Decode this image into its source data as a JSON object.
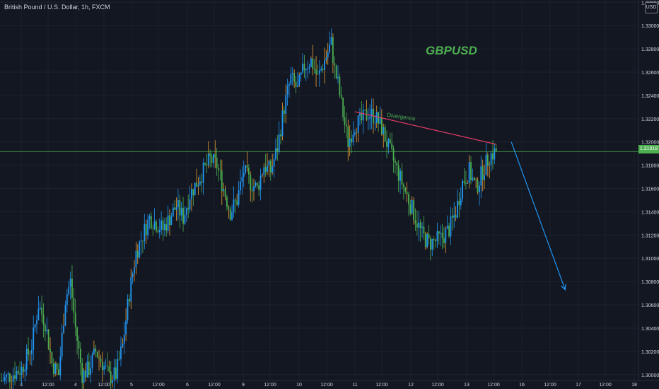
{
  "header": {
    "symbol_title": "British Pound / U.S. Dollar, 1h, FXCM",
    "currency": "USD"
  },
  "price_tag": "1.31918",
  "annotations": {
    "symbol": "GBPUSD",
    "divergence": "Divergence"
  },
  "colors": {
    "background": "#131722",
    "up_candle": "#2196f3",
    "down_candle": "#4caf50",
    "wick_alt": "#f0a030",
    "price_line": "#4caf50",
    "trendline": "#e23c64",
    "forecast_arrow": "#2196f3",
    "axis_text": "#d1d4dc"
  },
  "chart_data": {
    "type": "candlestick",
    "y_ticks": [
      "1.33200",
      "1.33000",
      "1.32800",
      "1.32600",
      "1.32400",
      "1.32200",
      "1.32000",
      "1.31800",
      "1.31600",
      "1.31400",
      "1.31200",
      "1.31000",
      "1.30800",
      "1.30600",
      "1.30400",
      "1.30200",
      "1.30000"
    ],
    "x_ticks": [
      "3",
      "12:00",
      "4",
      "12:00",
      "5",
      "12:00",
      "6",
      "12:00",
      "9",
      "12:00",
      "10",
      "12:00",
      "11",
      "12:00",
      "12",
      "12:00",
      "13",
      "12:00",
      "16",
      "12:00",
      "17",
      "12:00",
      "18"
    ],
    "ylim": [
      1.2995,
      1.3322
    ],
    "current_price": 1.31918,
    "close_path": [
      [
        0,
        1.2995
      ],
      [
        12,
        1.3005
      ],
      [
        18,
        1.3025
      ],
      [
        22,
        1.306
      ],
      [
        26,
        1.3045
      ],
      [
        30,
        1.301
      ],
      [
        34,
        1.3
      ],
      [
        38,
        1.3065
      ],
      [
        41,
        1.308
      ],
      [
        44,
        1.304
      ],
      [
        48,
        1.3
      ],
      [
        52,
        1.3005
      ],
      [
        56,
        1.302
      ],
      [
        60,
        1.301
      ],
      [
        64,
        1.2998
      ],
      [
        68,
        1.3
      ],
      [
        72,
        1.3025
      ],
      [
        76,
        1.307
      ],
      [
        80,
        1.3105
      ],
      [
        84,
        1.312
      ],
      [
        88,
        1.3135
      ],
      [
        92,
        1.313
      ],
      [
        96,
        1.3125
      ],
      [
        100,
        1.3135
      ],
      [
        104,
        1.3145
      ],
      [
        108,
        1.3135
      ],
      [
        112,
        1.3155
      ],
      [
        116,
        1.3165
      ],
      [
        120,
        1.3175
      ],
      [
        124,
        1.3185
      ],
      [
        128,
        1.318
      ],
      [
        132,
        1.316
      ],
      [
        136,
        1.314
      ],
      [
        140,
        1.315
      ],
      [
        144,
        1.3175
      ],
      [
        148,
        1.3165
      ],
      [
        152,
        1.316
      ],
      [
        156,
        1.318
      ],
      [
        160,
        1.3175
      ],
      [
        164,
        1.3195
      ],
      [
        168,
        1.323
      ],
      [
        172,
        1.3255
      ],
      [
        176,
        1.3245
      ],
      [
        180,
        1.3265
      ],
      [
        184,
        1.327
      ],
      [
        188,
        1.3255
      ],
      [
        192,
        1.327
      ],
      [
        196,
        1.3285
      ],
      [
        198,
        1.3262
      ],
      [
        200,
        1.325
      ],
      [
        202,
        1.3232
      ],
      [
        204,
        1.3215
      ],
      [
        206,
        1.32
      ],
      [
        210,
        1.3215
      ],
      [
        214,
        1.3218
      ],
      [
        218,
        1.3225
      ],
      [
        222,
        1.3222
      ],
      [
        226,
        1.3212
      ],
      [
        230,
        1.3195
      ],
      [
        234,
        1.318
      ],
      [
        238,
        1.3165
      ],
      [
        242,
        1.315
      ],
      [
        246,
        1.3135
      ],
      [
        250,
        1.312
      ],
      [
        254,
        1.3113
      ],
      [
        258,
        1.3115
      ],
      [
        262,
        1.3118
      ],
      [
        266,
        1.3125
      ],
      [
        270,
        1.314
      ],
      [
        274,
        1.3165
      ],
      [
        278,
        1.3175
      ],
      [
        282,
        1.316
      ],
      [
        286,
        1.3175
      ],
      [
        290,
        1.3188
      ],
      [
        294,
        1.3192
      ]
    ],
    "divergence_line": {
      "from": [
        210,
        1.3226
      ],
      "to": [
        294,
        1.3198
      ]
    },
    "forecast_arrow": {
      "from": [
        303,
        1.32
      ],
      "to": [
        335,
        1.3073
      ]
    }
  }
}
